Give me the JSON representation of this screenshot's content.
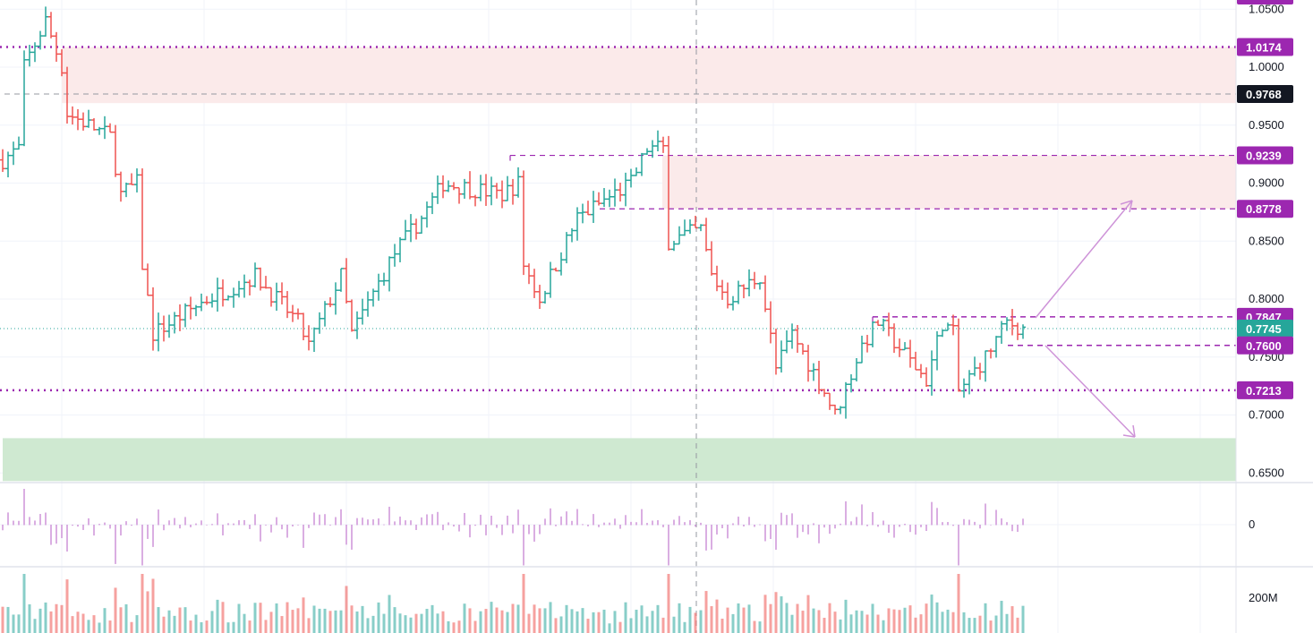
{
  "chart_data": {
    "type": "ohlc",
    "price_axis": {
      "ticks": [
        "1.0500",
        "1.0000",
        "0.9500",
        "0.9000",
        "0.8500",
        "0.8000",
        "0.7500",
        "0.7000",
        "0.6500"
      ],
      "tick_values": [
        1.05,
        1.0,
        0.95,
        0.9,
        0.85,
        0.8,
        0.75,
        0.7,
        0.65
      ],
      "ylim": [
        0.64,
        1.056
      ]
    },
    "bar_count": 191,
    "approx_close_path": [
      [
        0,
        0.92
      ],
      [
        3,
        0.93
      ],
      [
        4,
        1.0
      ],
      [
        8,
        1.04
      ],
      [
        11,
        1.0
      ],
      [
        12,
        0.96
      ],
      [
        20,
        0.94
      ],
      [
        22,
        0.89
      ],
      [
        25,
        0.9
      ],
      [
        26,
        0.83
      ],
      [
        28,
        0.77
      ],
      [
        38,
        0.8
      ],
      [
        47,
        0.82
      ],
      [
        55,
        0.78
      ],
      [
        57,
        0.76
      ],
      [
        63,
        0.82
      ],
      [
        65,
        0.77
      ],
      [
        73,
        0.84
      ],
      [
        78,
        0.87
      ],
      [
        82,
        0.9
      ],
      [
        93,
        0.89
      ],
      [
        96,
        0.9
      ],
      [
        97,
        0.83
      ],
      [
        100,
        0.8
      ],
      [
        107,
        0.87
      ],
      [
        117,
        0.9
      ],
      [
        120,
        0.93
      ],
      [
        123,
        0.93
      ],
      [
        124,
        0.85
      ],
      [
        130,
        0.86
      ],
      [
        132,
        0.82
      ],
      [
        135,
        0.8
      ],
      [
        141,
        0.82
      ],
      [
        144,
        0.74
      ],
      [
        147,
        0.77
      ],
      [
        153,
        0.72
      ],
      [
        155,
        0.7
      ],
      [
        160,
        0.76
      ],
      [
        163,
        0.78
      ],
      [
        172,
        0.73
      ],
      [
        175,
        0.78
      ],
      [
        177,
        0.77
      ],
      [
        178,
        0.72
      ],
      [
        183,
        0.75
      ],
      [
        187,
        0.78
      ],
      [
        190,
        0.7745
      ]
    ],
    "bull_color": "#26a69a",
    "bear_color": "#ef5350",
    "price_tags": [
      {
        "label": "1.0174",
        "value": 1.0174,
        "color": "#9c27b0"
      },
      {
        "label": "0.9768",
        "value": 0.9768,
        "color": "#131722"
      },
      {
        "label": "0.9239",
        "value": 0.9239,
        "color": "#9c27b0"
      },
      {
        "label": "0.8778",
        "value": 0.8778,
        "color": "#9c27b0"
      },
      {
        "label": "0.7847",
        "value": 0.7847,
        "color": "#9c27b0"
      },
      {
        "label": "0.7745",
        "value": 0.7745,
        "color": "#26a69a"
      },
      {
        "label": "0.7600",
        "value": 0.76,
        "color": "#9c27b0"
      },
      {
        "label": "0.7213",
        "value": 0.7213,
        "color": "#9c27b0"
      }
    ],
    "zones": [
      {
        "name": "resistance-zone-upper",
        "top": 1.0174,
        "bottom": 0.969,
        "start_bar": 11,
        "color": "#fbeaea"
      },
      {
        "name": "resistance-zone-mid",
        "top": 0.9239,
        "bottom": 0.8778,
        "start_bar": 123,
        "color": "#fbeaea"
      },
      {
        "name": "support-zone",
        "top": 0.68,
        "bottom": 0.643,
        "start_bar": 0,
        "color": "#cfe9d1"
      }
    ],
    "oscillator": {
      "zero_label": "0",
      "color": "#ce93d8"
    },
    "volume": {
      "tick_label": "200M"
    },
    "crosshair": {
      "price": 0.9768,
      "bar": 129
    }
  }
}
